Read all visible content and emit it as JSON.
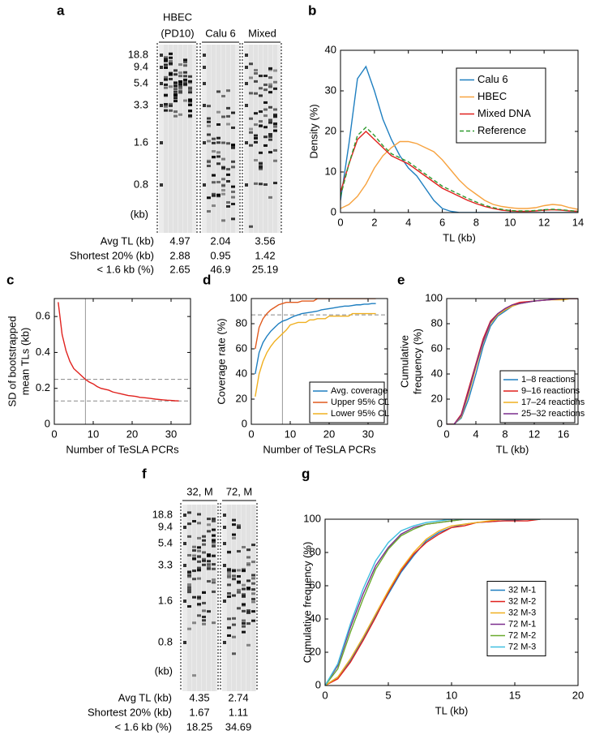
{
  "gels": [
    {
      "panel": "a",
      "lanes": [
        [
          "HBEC",
          "(PD10)"
        ],
        [
          "Calu 6"
        ],
        [
          "Mixed"
        ]
      ],
      "markers": [
        "18.8",
        "9.4",
        "5.4",
        "3.3",
        "1.6",
        "0.8",
        "(kb)"
      ],
      "table": [
        {
          "label": "Avg TL (kb)",
          "values": [
            4.97,
            2.04,
            3.56
          ]
        },
        {
          "label": "Shortest 20% (kb)",
          "values": [
            2.88,
            0.95,
            1.42
          ]
        },
        {
          "label": "< 1.6 kb (%)",
          "values": [
            2.65,
            46.9,
            25.19
          ]
        }
      ]
    },
    {
      "panel": "f",
      "lanes": [
        [
          "32, M"
        ],
        [
          "72, M"
        ]
      ],
      "markers": [
        "18.8",
        "9.4",
        "5.4",
        "3.3",
        "1.6",
        "0.8",
        "(kb)"
      ],
      "table": [
        {
          "label": "Avg TL (kb)",
          "values": [
            4.35,
            2.74
          ]
        },
        {
          "label": "Shortest 20% (kb)",
          "values": [
            1.67,
            1.11
          ]
        },
        {
          "label": "< 1.6 kb (%)",
          "values": [
            18.25,
            34.69
          ]
        }
      ]
    }
  ],
  "chart_data": [
    {
      "panel": "b",
      "type": "line",
      "xlabel": "TL (kb)",
      "ylabel": [
        "Density (%)"
      ],
      "xlim": [
        0,
        14
      ],
      "xticks": [
        0,
        2,
        4,
        6,
        8,
        10,
        12,
        14
      ],
      "ylim": [
        0,
        40
      ],
      "yticks": [
        0,
        10,
        20,
        30,
        40
      ],
      "legend": "upper right",
      "x": [
        0,
        0.5,
        1,
        1.5,
        2,
        2.5,
        3,
        3.5,
        4,
        4.5,
        5,
        5.5,
        6,
        6.5,
        7,
        7.5,
        8,
        8.5,
        9,
        9.5,
        10,
        10.5,
        11,
        11.5,
        12,
        12.5,
        13,
        13.5,
        14
      ],
      "series": [
        {
          "name": "Calu 6",
          "color": "#1f7fc0",
          "values": [
            3,
            17,
            33,
            36,
            30,
            23,
            18,
            14,
            11,
            9,
            6,
            3,
            1,
            0.3,
            0,
            0,
            0,
            0,
            0,
            0,
            0,
            0,
            0,
            0,
            0,
            0,
            0,
            0,
            0
          ]
        },
        {
          "name": "HBEC",
          "color": "#f7a340",
          "values": [
            1,
            2,
            4,
            7,
            11,
            14,
            16,
            17.5,
            17.5,
            17,
            16,
            15,
            13,
            10.5,
            8,
            6,
            4.5,
            3,
            2,
            1.5,
            1.2,
            1,
            1,
            1.2,
            1.7,
            2,
            1.8,
            1.2,
            0.8
          ]
        },
        {
          "name": "Mixed DNA",
          "color": "#e0211d",
          "values": [
            5,
            12,
            18,
            20,
            18,
            16,
            14,
            13,
            12,
            10.5,
            9,
            7.5,
            6,
            5,
            4,
            3,
            2.2,
            1.5,
            1,
            0.6,
            0.4,
            0.3,
            0.3,
            0.4,
            0.6,
            0.7,
            0.6,
            0.4,
            0.3
          ]
        },
        {
          "name": "Reference",
          "color": "#2e9a2e",
          "linestyle": "dashed",
          "values": [
            4,
            12,
            19,
            21,
            19,
            16.5,
            14.5,
            13.5,
            12.5,
            11,
            9.5,
            8,
            6.5,
            5.5,
            4.5,
            3.5,
            2.6,
            1.8,
            1.2,
            0.8,
            0.5,
            0.4,
            0.4,
            0.5,
            0.7,
            0.8,
            0.7,
            0.5,
            0.3
          ]
        }
      ]
    },
    {
      "panel": "c",
      "type": "line",
      "xlabel": "Number of TeSLA PCRs",
      "ylabel": [
        "SD of bootstrapped",
        "mean TLs (kb)"
      ],
      "xlim": [
        0,
        35
      ],
      "xticks": [
        0,
        10,
        20,
        30
      ],
      "ylim": [
        0,
        0.7
      ],
      "yticks": [
        0,
        0.2,
        0.4,
        0.6
      ],
      "vlines": [
        8
      ],
      "hlines": [
        0.25,
        0.13
      ],
      "x": [
        1,
        2,
        3,
        4,
        5,
        6,
        7,
        8,
        9,
        10,
        11,
        12,
        13,
        14,
        15,
        16,
        17,
        18,
        19,
        20,
        21,
        22,
        23,
        24,
        25,
        26,
        27,
        28,
        29,
        30,
        31,
        32
      ],
      "series": [
        {
          "color": "#e0211d",
          "values": [
            0.68,
            0.5,
            0.41,
            0.35,
            0.31,
            0.29,
            0.27,
            0.25,
            0.235,
            0.225,
            0.21,
            0.2,
            0.195,
            0.19,
            0.18,
            0.175,
            0.17,
            0.165,
            0.16,
            0.158,
            0.155,
            0.15,
            0.148,
            0.146,
            0.143,
            0.14,
            0.138,
            0.136,
            0.134,
            0.133,
            0.131,
            0.13
          ]
        }
      ]
    },
    {
      "panel": "d",
      "type": "line",
      "xlabel": "Number of TeSLA PCRs",
      "ylabel": [
        "Coverage rate (%)"
      ],
      "xlim": [
        0,
        35
      ],
      "xticks": [
        0,
        10,
        20,
        30
      ],
      "ylim": [
        0,
        100
      ],
      "yticks": [
        0,
        20,
        40,
        60,
        80,
        100
      ],
      "vlines": [
        8
      ],
      "hlines": [
        87
      ],
      "legend": "lower right",
      "x": [
        1,
        2,
        3,
        4,
        5,
        6,
        7,
        8,
        9,
        10,
        11,
        12,
        13,
        14,
        15,
        16,
        17,
        18,
        19,
        20,
        21,
        22,
        23,
        24,
        25,
        26,
        27,
        28,
        29,
        30,
        31,
        32
      ],
      "series": [
        {
          "name": "Avg. coverage",
          "color": "#1f7fc0",
          "values": [
            40,
            57,
            65,
            70,
            74,
            77,
            80,
            82,
            83,
            84.5,
            86,
            87,
            88,
            88.5,
            89,
            89.5,
            90,
            91,
            91.5,
            92,
            92.5,
            93,
            93.5,
            94,
            94,
            94.5,
            95,
            95,
            95.5,
            95.5,
            96,
            96
          ]
        },
        {
          "name": "Upper 95% CL",
          "color": "#e05a1d",
          "values": [
            60,
            77,
            84,
            88,
            91,
            93,
            95,
            96,
            97,
            97,
            97,
            97,
            98,
            98,
            98,
            98,
            100,
            100,
            100,
            100,
            100,
            100,
            100,
            100,
            100,
            100,
            100,
            100,
            100,
            100,
            100,
            100
          ]
        },
        {
          "name": "Lower 95% CL",
          "color": "#f0b020",
          "values": [
            22,
            40,
            50,
            57,
            62,
            66,
            69,
            72,
            75,
            79,
            80,
            81,
            81,
            81,
            83,
            83,
            84,
            84,
            84,
            86,
            86,
            86,
            86,
            86,
            86,
            88,
            88,
            88,
            88,
            88,
            88,
            88
          ]
        }
      ]
    },
    {
      "panel": "e",
      "type": "line",
      "xlabel": "TL (kb)",
      "ylabel": [
        "Cumulative",
        "frequency (%)"
      ],
      "xlim": [
        0,
        18
      ],
      "xticks": [
        0,
        4,
        8,
        12,
        16
      ],
      "ylim": [
        0,
        100
      ],
      "yticks": [
        0,
        20,
        40,
        60,
        80,
        100
      ],
      "legend": "lower right",
      "x": [
        0,
        1,
        2,
        3,
        4,
        5,
        6,
        7,
        8,
        9,
        10,
        12,
        14,
        16,
        17,
        18
      ],
      "series": [
        {
          "name": "1–8 reactions",
          "color": "#1f7fc0",
          "values": [
            0,
            0,
            5,
            20,
            40,
            62,
            78,
            86,
            90,
            94,
            96,
            98,
            99,
            100,
            100,
            100
          ]
        },
        {
          "name": "9–16 reactions",
          "color": "#e0211d",
          "values": [
            0,
            0,
            8,
            28,
            48,
            68,
            82,
            88,
            92,
            95,
            97,
            98,
            99,
            100,
            100,
            100
          ]
        },
        {
          "name": "17–24 reactions",
          "color": "#f0b020",
          "values": [
            0,
            0,
            6,
            24,
            45,
            65,
            80,
            87,
            91,
            94,
            96,
            98,
            99,
            99,
            100,
            100
          ]
        },
        {
          "name": "25–32 reactions",
          "color": "#7b2e8e",
          "values": [
            0,
            0,
            7,
            26,
            47,
            66,
            81,
            88,
            92,
            95,
            96,
            98,
            99,
            100,
            100,
            100
          ]
        }
      ]
    },
    {
      "panel": "g",
      "type": "line",
      "xlabel": "TL (kb)",
      "ylabel": [
        "Cumulative frequency (%)"
      ],
      "xlim": [
        0,
        20
      ],
      "xticks": [
        0,
        5,
        10,
        15,
        20
      ],
      "ylim": [
        0,
        100
      ],
      "yticks": [
        0,
        20,
        40,
        60,
        80,
        100
      ],
      "legend": "center right",
      "x": [
        0,
        1,
        2,
        3,
        4,
        5,
        6,
        7,
        8,
        9,
        10,
        11,
        12,
        14,
        16,
        17
      ],
      "series": [
        {
          "name": "32 M-1",
          "color": "#1f7fc0",
          "values": [
            0,
            5,
            15,
            28,
            42,
            55,
            68,
            78,
            87,
            92,
            95,
            97,
            98,
            99,
            100,
            100
          ]
        },
        {
          "name": "32 M-2",
          "color": "#e0211d",
          "values": [
            0,
            4,
            14,
            27,
            41,
            56,
            69,
            79,
            86,
            91,
            95,
            96,
            98,
            99,
            99,
            100
          ]
        },
        {
          "name": "32 M-3",
          "color": "#f0b020",
          "values": [
            0,
            5,
            16,
            29,
            43,
            57,
            70,
            80,
            88,
            93,
            96,
            97,
            98,
            100,
            100,
            100
          ]
        },
        {
          "name": "72 M-1",
          "color": "#7b2e8e",
          "values": [
            0,
            12,
            35,
            55,
            72,
            83,
            91,
            95,
            97,
            98,
            99,
            100,
            100,
            100,
            100,
            100
          ]
        },
        {
          "name": "72 M-2",
          "color": "#6aaa2e",
          "values": [
            0,
            10,
            32,
            52,
            70,
            82,
            90,
            94,
            97,
            98,
            99,
            100,
            100,
            100,
            100,
            100
          ]
        },
        {
          "name": "72 M-3",
          "color": "#3fbfe0",
          "values": [
            0,
            13,
            37,
            58,
            75,
            86,
            93,
            96,
            98,
            99,
            100,
            100,
            100,
            100,
            100,
            100
          ]
        }
      ]
    }
  ]
}
